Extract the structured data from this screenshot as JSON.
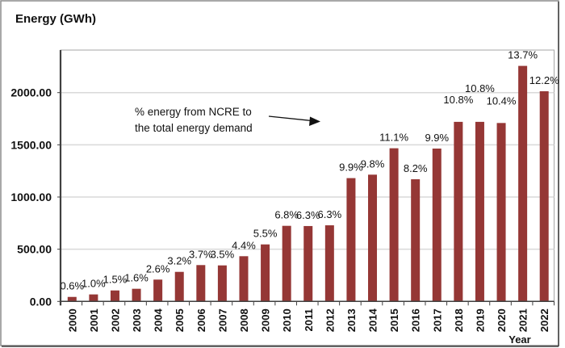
{
  "chart_data": {
    "type": "bar",
    "title": "",
    "ylabel": "Energy (GWh)",
    "xlabel": "Year",
    "ylim": [
      0,
      2400
    ],
    "yticks": [
      0,
      500,
      1000,
      1500,
      2000
    ],
    "ytick_labels": [
      "0.00",
      "500.00",
      "1000.00",
      "1500.00",
      "2000.00"
    ],
    "grid": true,
    "bar_color": "#953735",
    "categories": [
      "2000",
      "2001",
      "2002",
      "2003",
      "2004",
      "2005",
      "2006",
      "2007",
      "2008",
      "2009",
      "2010",
      "2011",
      "2012",
      "2013",
      "2014",
      "2015",
      "2016",
      "2017",
      "2018",
      "2019",
      "2020",
      "2021",
      "2022"
    ],
    "values": [
      43,
      67,
      105,
      121,
      209,
      283,
      348,
      345,
      433,
      546,
      724,
      722,
      729,
      1181,
      1214,
      1467,
      1170,
      1464,
      1720,
      1720,
      1709,
      2256,
      2013
    ],
    "data_labels": [
      "0.6%",
      "1.0%",
      "1.5%",
      "1.6%",
      "2.6%",
      "3.2%",
      "3.7%",
      "3.5%",
      "4.4%",
      "5.5%",
      "6.8%",
      "6.3%",
      "6.3%",
      "9.9%",
      "9.8%",
      "11.1%",
      "8.2%",
      "9.9%",
      "10.8%",
      "10.8%",
      "10.4%",
      "13.7%",
      "12.2%"
    ],
    "data_label_raise": [
      0,
      0,
      0,
      0,
      0,
      0,
      0,
      0,
      0,
      0,
      0,
      0,
      0,
      0,
      0,
      0,
      0,
      0,
      1,
      2,
      1,
      0,
      0
    ],
    "annotation": {
      "lines": [
        "% energy from NCRE to",
        "the total energy demand"
      ]
    }
  }
}
